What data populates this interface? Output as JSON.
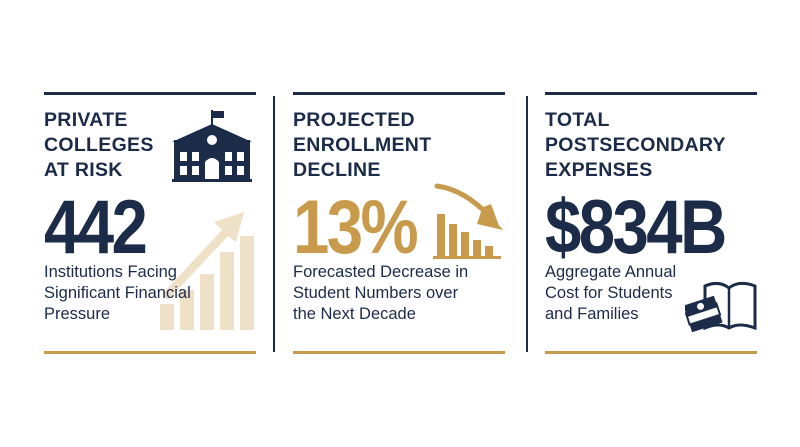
{
  "colors": {
    "navy": "#1b2b48",
    "gold": "#c89a4c",
    "beige": "#efe1c8"
  },
  "panels": [
    {
      "title_lines": [
        "PRIVATE",
        "COLLEGES",
        "AT RISK"
      ],
      "value": "442",
      "value_color": "#1b2b48",
      "desc_lines": [
        "Institutions Facing",
        "Significant Financial",
        "Pressure"
      ],
      "icons": [
        "school-building-icon",
        "rising-bar-chart-icon"
      ]
    },
    {
      "title_lines": [
        "PROJECTED",
        "ENROLLMENT",
        "DECLINE"
      ],
      "value": "13%",
      "value_color": "#c89a4c",
      "desc_lines": [
        "Forecasted Decrease in",
        "Student Numbers over",
        "the Next Decade"
      ],
      "icons": [
        "declining-bar-chart-icon"
      ]
    },
    {
      "title_lines": [
        "TOTAL",
        "POSTSECONDARY",
        "EXPENSES"
      ],
      "value": "$834B",
      "value_color": "#1b2b48",
      "desc_lines": [
        "Aggregate Annual",
        "Cost for Students",
        "and Families"
      ],
      "icons": [
        "money-and-book-icon"
      ]
    }
  ]
}
